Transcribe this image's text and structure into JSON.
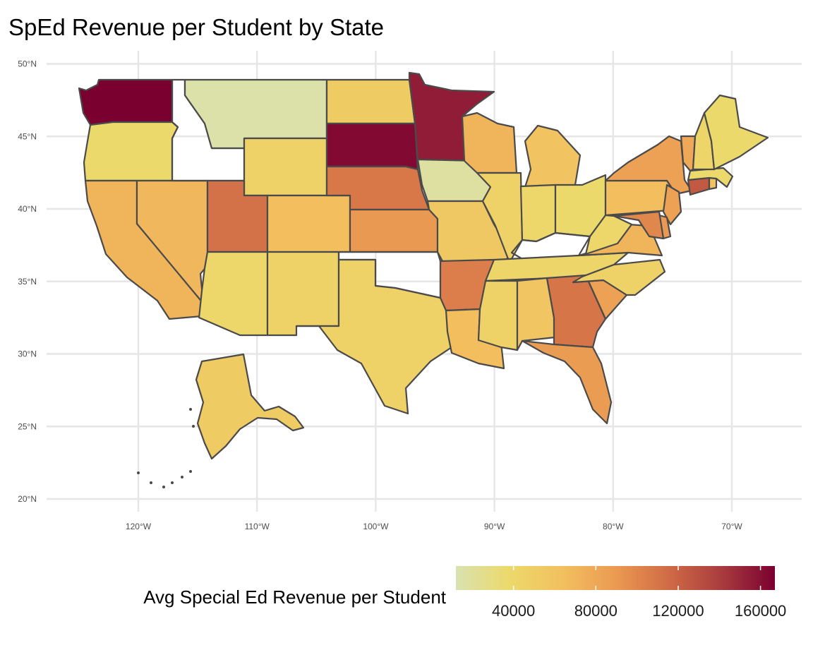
{
  "title": "SpEd Revenue per Student by State",
  "colors": {
    "scale": [
      "#d9e2b0",
      "#ecd96b",
      "#f2c05f",
      "#eb9a52",
      "#d06b46",
      "#a93c3e",
      "#7a0030"
    ],
    "state_border": "#4a4a4a",
    "grid": "#e6e6e6"
  },
  "axes": {
    "lat_ticks": [
      {
        "value": 50,
        "label": "50°N"
      },
      {
        "value": 45,
        "label": "45°N"
      },
      {
        "value": 40,
        "label": "40°N"
      },
      {
        "value": 35,
        "label": "35°N"
      },
      {
        "value": 30,
        "label": "30°N"
      },
      {
        "value": 25,
        "label": "25°N"
      },
      {
        "value": 20,
        "label": "20°N"
      }
    ],
    "lon_ticks": [
      {
        "value": -120,
        "label": "120°W"
      },
      {
        "value": -110,
        "label": "110°W"
      },
      {
        "value": -100,
        "label": "100°W"
      },
      {
        "value": -90,
        "label": "90°W"
      },
      {
        "value": -80,
        "label": "80°W"
      },
      {
        "value": -70,
        "label": "70°W"
      }
    ]
  },
  "legend": {
    "title": "Avg Special Ed Revenue per Student",
    "min": 12000,
    "max": 167000,
    "ticks": [
      {
        "value": 40000,
        "label": "40000"
      },
      {
        "value": 80000,
        "label": "80000"
      },
      {
        "value": 120000,
        "label": "120000"
      },
      {
        "value": 160000,
        "label": "160000"
      }
    ]
  },
  "states": [
    {
      "id": "WA",
      "name": "Washington",
      "value": 167000
    },
    {
      "id": "OR",
      "name": "Oregon",
      "value": 38000
    },
    {
      "id": "CA",
      "name": "California",
      "value": 72000
    },
    {
      "id": "NV",
      "name": "Nevada",
      "value": 70000
    },
    {
      "id": "ID",
      "name": "Idaho",
      "value": null
    },
    {
      "id": "MT",
      "name": "Montana",
      "value": 15000
    },
    {
      "id": "WY",
      "name": "Wyoming",
      "value": 45000
    },
    {
      "id": "UT",
      "name": "Utah",
      "value": 112000
    },
    {
      "id": "AZ",
      "name": "Arizona",
      "value": 40000
    },
    {
      "id": "CO",
      "name": "Colorado",
      "value": 65000
    },
    {
      "id": "NM",
      "name": "New Mexico",
      "value": 46000
    },
    {
      "id": "ND",
      "name": "North Dakota",
      "value": 52000
    },
    {
      "id": "SD",
      "name": "South Dakota",
      "value": 163000
    },
    {
      "id": "NE",
      "name": "Nebraska",
      "value": 108000
    },
    {
      "id": "KS",
      "name": "Kansas",
      "value": 90000
    },
    {
      "id": "OK",
      "name": "Oklahoma",
      "value": null
    },
    {
      "id": "TX",
      "name": "Texas",
      "value": 46000
    },
    {
      "id": "MN",
      "name": "Minnesota",
      "value": 155000
    },
    {
      "id": "IA",
      "name": "Iowa",
      "value": 18000
    },
    {
      "id": "MO",
      "name": "Missouri",
      "value": 55000
    },
    {
      "id": "AR",
      "name": "Arkansas",
      "value": 105000
    },
    {
      "id": "LA",
      "name": "Louisiana",
      "value": 65000
    },
    {
      "id": "WI",
      "name": "Wisconsin",
      "value": 72000
    },
    {
      "id": "IL",
      "name": "Illinois",
      "value": 46000
    },
    {
      "id": "MI",
      "name": "Michigan",
      "value": 60000
    },
    {
      "id": "IN",
      "name": "Indiana",
      "value": 40000
    },
    {
      "id": "OH",
      "name": "Ohio",
      "value": 38000
    },
    {
      "id": "KY",
      "name": "Kentucky",
      "value": null
    },
    {
      "id": "TN",
      "name": "Tennessee",
      "value": 42000
    },
    {
      "id": "MS",
      "name": "Mississippi",
      "value": 45000
    },
    {
      "id": "AL",
      "name": "Alabama",
      "value": 58000
    },
    {
      "id": "GA",
      "name": "Georgia",
      "value": 110000
    },
    {
      "id": "FL",
      "name": "Florida",
      "value": 88000
    },
    {
      "id": "SC",
      "name": "South Carolina",
      "value": 85000
    },
    {
      "id": "NC",
      "name": "North Carolina",
      "value": 45000
    },
    {
      "id": "VA",
      "name": "Virginia",
      "value": 72000
    },
    {
      "id": "WV",
      "name": "West Virginia",
      "value": 40000
    },
    {
      "id": "PA",
      "name": "Pennsylvania",
      "value": 65000
    },
    {
      "id": "NY",
      "name": "New York",
      "value": 85000
    },
    {
      "id": "NJ",
      "name": "New Jersey",
      "value": 85000
    },
    {
      "id": "DE",
      "name": "Delaware",
      "value": 90000
    },
    {
      "id": "MD",
      "name": "Maryland",
      "value": 100000
    },
    {
      "id": "CT",
      "name": "Connecticut",
      "value": 125000
    },
    {
      "id": "RI",
      "name": "Rhode Island",
      "value": 60000
    },
    {
      "id": "MA",
      "name": "Massachusetts",
      "value": 38000
    },
    {
      "id": "VT",
      "name": "Vermont",
      "value": 80000
    },
    {
      "id": "NH",
      "name": "New Hampshire",
      "value": 42000
    },
    {
      "id": "ME",
      "name": "Maine",
      "value": 38000
    },
    {
      "id": "AK",
      "name": "Alaska",
      "value": 52000
    }
  ]
}
